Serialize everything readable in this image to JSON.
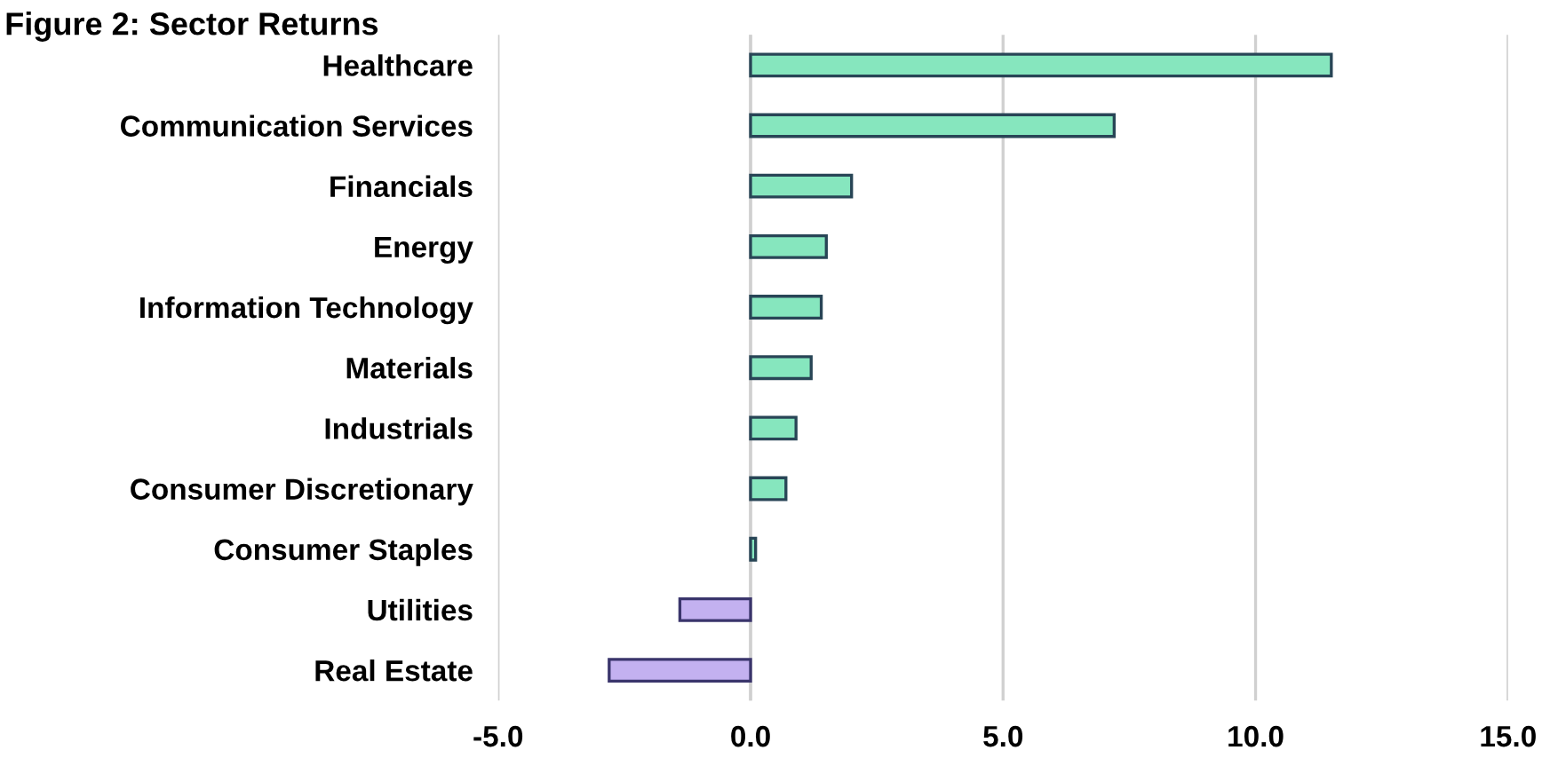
{
  "chart_data": {
    "type": "bar",
    "orientation": "horizontal",
    "title": "Figure 2: Sector Returns",
    "categories": [
      "Healthcare",
      "Communication Services",
      "Financials",
      "Energy",
      "Information Technology",
      "Materials",
      "Industrials",
      "Consumer Discretionary",
      "Consumer Staples",
      "Utilities",
      "Real Estate"
    ],
    "values": [
      11.5,
      7.2,
      2.0,
      1.5,
      1.4,
      1.2,
      0.9,
      0.7,
      0.1,
      -1.4,
      -2.8
    ],
    "colors": [
      "#86e6be",
      "#86e6be",
      "#86e6be",
      "#86e6be",
      "#86e6be",
      "#86e6be",
      "#86e6be",
      "#86e6be",
      "#86e6be",
      "#c3b1f0",
      "#c3b1f0"
    ],
    "xlim": [
      -5,
      15
    ],
    "xticks": [
      {
        "value": -5,
        "label": "-5.0"
      },
      {
        "value": 0,
        "label": "0.0"
      },
      {
        "value": 5,
        "label": "5.0"
      },
      {
        "value": 10,
        "label": "10.0"
      },
      {
        "value": 15,
        "label": "15.0"
      }
    ],
    "grid": "x",
    "legend": false
  }
}
